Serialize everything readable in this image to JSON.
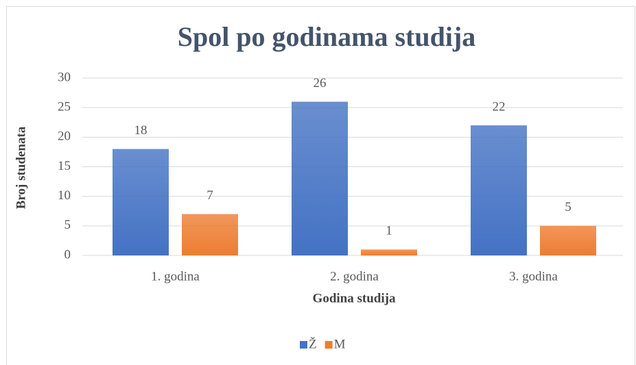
{
  "chart_data": {
    "type": "bar",
    "title": "Spol po godinama studija",
    "x_label": "Godina studija",
    "y_label": "Broj studenata",
    "categories": [
      "1. godina",
      "2. godina",
      "3. godina"
    ],
    "series": [
      {
        "name": "Ž",
        "color": "#4472c4",
        "values": [
          18,
          26,
          22
        ]
      },
      {
        "name": "M",
        "color": "#ed7d31",
        "values": [
          7,
          1,
          5
        ]
      }
    ],
    "ylim": [
      0,
      30
    ],
    "yticks": [
      0,
      5,
      10,
      15,
      20,
      25,
      30
    ],
    "grid": true,
    "legend": "bottom"
  }
}
